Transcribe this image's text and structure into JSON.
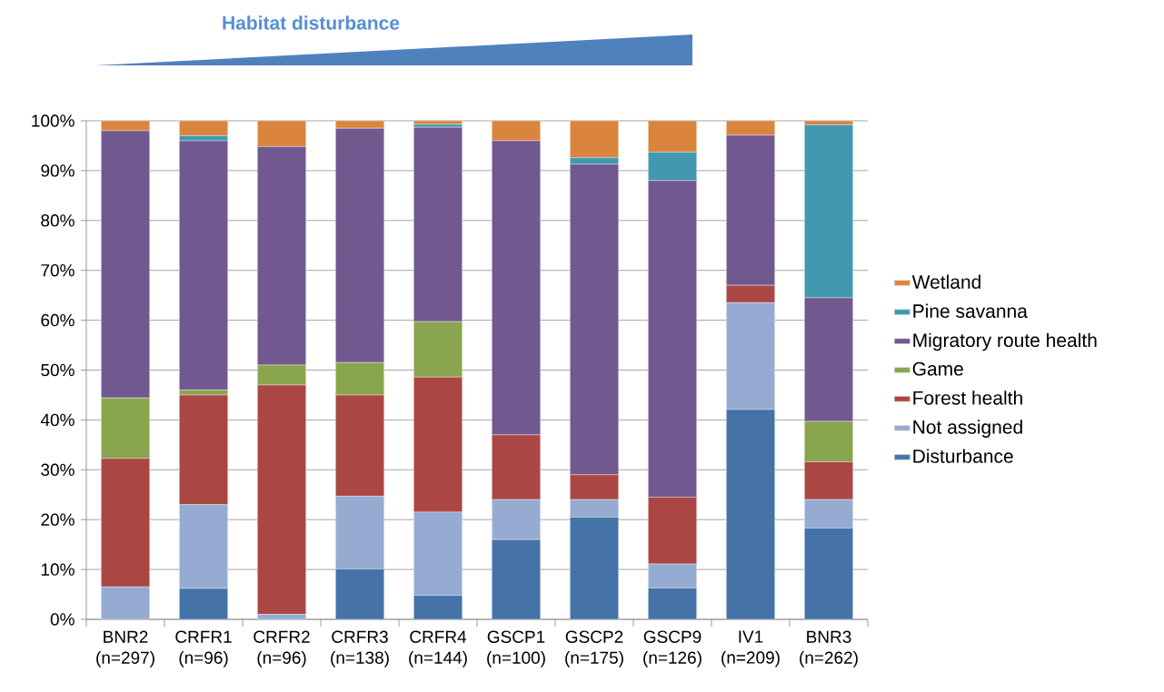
{
  "chart_data": {
    "type": "bar",
    "title": "Habitat disturbance",
    "stacked": true,
    "categories": [
      "BNR2 (n=297)",
      "CRFR1 (n=96)",
      "CRFR2 (n=96)",
      "CRFR3 (n=138)",
      "CRFR4 (n=144)",
      "GSCP1 (n=100)",
      "GSCP2 (n=175)",
      "GSCP9 (n=126)",
      "IV1 (n=209)",
      "BNR3 (n=262)"
    ],
    "series": [
      {
        "name": "Disturbance",
        "color": "#4572a7",
        "values": [
          0,
          6.2,
          0,
          10.1,
          4.8,
          16,
          20.5,
          6.3,
          42.1,
          18.3
        ]
      },
      {
        "name": "Not assigned",
        "color": "#95abd1",
        "values": [
          6.5,
          16.8,
          1,
          14.6,
          16.7,
          8,
          3.5,
          4.8,
          21.4,
          5.7
        ]
      },
      {
        "name": "Forest health",
        "color": "#aa4643",
        "values": [
          25.8,
          22,
          46,
          20.3,
          27.1,
          13,
          5,
          13.4,
          3.5,
          7.6
        ]
      },
      {
        "name": "Game",
        "color": "#89a54e",
        "values": [
          12.1,
          1,
          4,
          6.5,
          11.1,
          0,
          0,
          0,
          0,
          8.1
        ]
      },
      {
        "name": "Migratory route health",
        "color": "#71588f",
        "values": [
          53.6,
          50,
          43.8,
          47,
          39,
          59,
          62.3,
          63.5,
          30.1,
          24.8
        ]
      },
      {
        "name": "Pine savanna",
        "color": "#4198af",
        "values": [
          0,
          1,
          0,
          0,
          0.6,
          0,
          1.3,
          5.7,
          0,
          34.7
        ]
      },
      {
        "name": "Wetland",
        "color": "#db843d",
        "values": [
          2,
          3,
          5.2,
          1.5,
          0.7,
          4,
          7.4,
          6.3,
          2.9,
          0.8
        ]
      }
    ],
    "ylim": [
      0,
      100
    ],
    "yticks": [
      {
        "value": 0,
        "label": "0%"
      },
      {
        "value": 10,
        "label": "10%"
      },
      {
        "value": 20,
        "label": "20%"
      },
      {
        "value": 30,
        "label": "30%"
      },
      {
        "value": 40,
        "label": "40%"
      },
      {
        "value": 50,
        "label": "50%"
      },
      {
        "value": 60,
        "label": "60%"
      },
      {
        "value": 70,
        "label": "70%"
      },
      {
        "value": 80,
        "label": "80%"
      },
      {
        "value": 90,
        "label": "90%"
      },
      {
        "value": 100,
        "label": "100%"
      }
    ],
    "grid": "y",
    "legend": "right"
  }
}
